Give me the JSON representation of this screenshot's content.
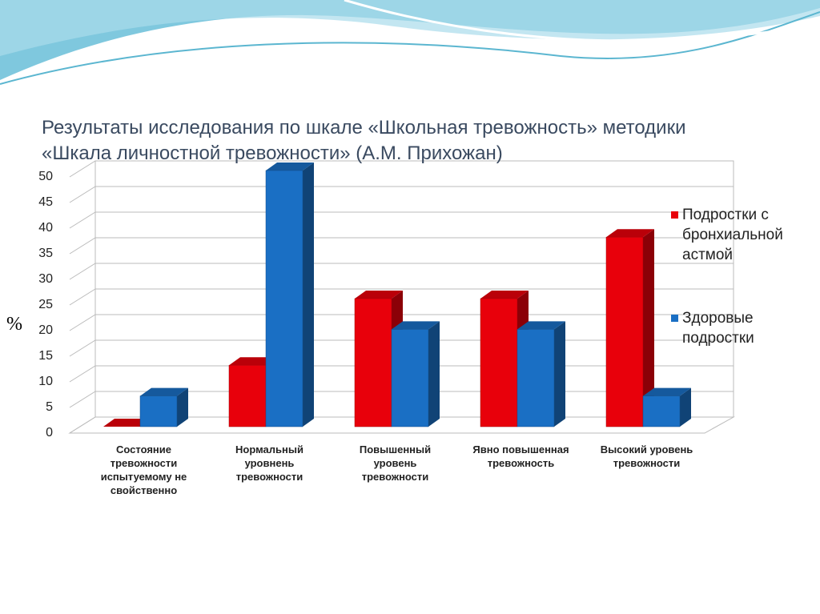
{
  "chart_data": {
    "type": "bar",
    "title": "Результаты исследования по шкале «Школьная тревожность» методики «Шкала личностной тревожности» (А.М. Прихожан)",
    "y_label": "%",
    "categories": [
      "Состояние тревожности испытуемому не свойственно",
      "Нормальный уровнень тревожности",
      "Повышенный уровень тревожности",
      "Явно повышенная тревожность",
      "Высокий уровень тревожности"
    ],
    "series": [
      {
        "name": "Подростки с бронхиальной астмой",
        "color": "#e8000b",
        "values": [
          0,
          12,
          25,
          25,
          37
        ]
      },
      {
        "name": "Здоровые подростки",
        "color": "#1a6fc4",
        "values": [
          6,
          50,
          19,
          19,
          6
        ]
      }
    ],
    "ylim": [
      0,
      50
    ],
    "yticks": [
      0,
      5,
      10,
      15,
      20,
      25,
      30,
      35,
      40,
      45,
      50
    ],
    "grid": true,
    "legend": "right"
  }
}
